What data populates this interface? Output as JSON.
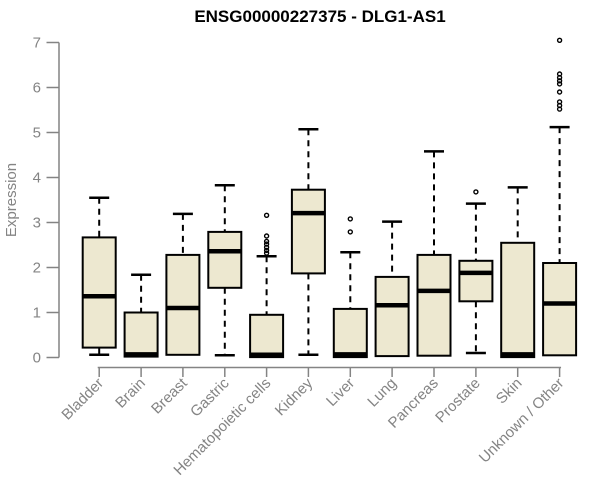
{
  "chart_data": {
    "type": "boxplot",
    "title": "ENSG00000227375 - DLG1-AS1",
    "ylabel": "Expression",
    "xlabel": "",
    "ylim": [
      0,
      7.2
    ],
    "yticks": [
      0,
      1,
      2,
      3,
      4,
      5,
      6,
      7
    ],
    "grid": false,
    "legend": "none",
    "categories": [
      "Bladder",
      "Brain",
      "Breast",
      "Gastric",
      "Hematopoietic cells",
      "Kidney",
      "Liver",
      "Lung",
      "Pancreas",
      "Prostate",
      "Skin",
      "Unknown / Other"
    ],
    "boxes": [
      {
        "category": "Bladder",
        "whisker_low": 0.06,
        "q1": 0.22,
        "median": 1.36,
        "q3": 2.67,
        "whisker_high": 3.55,
        "outliers": []
      },
      {
        "category": "Brain",
        "whisker_low": 0.02,
        "q1": 0.02,
        "median": 0.07,
        "q3": 1.0,
        "whisker_high": 1.84,
        "outliers": []
      },
      {
        "category": "Breast",
        "whisker_low": 0.06,
        "q1": 0.06,
        "median": 1.1,
        "q3": 2.28,
        "whisker_high": 3.19,
        "outliers": []
      },
      {
        "category": "Gastric",
        "whisker_low": 0.05,
        "q1": 1.55,
        "median": 2.36,
        "q3": 2.79,
        "whisker_high": 3.83,
        "outliers": []
      },
      {
        "category": "Hematopoietic cells",
        "whisker_low": 0.01,
        "q1": 0.01,
        "median": 0.06,
        "q3": 0.95,
        "whisker_high": 2.25,
        "outliers": [
          2.32,
          2.38,
          2.45,
          2.52,
          2.58,
          2.7,
          3.16
        ]
      },
      {
        "category": "Kidney",
        "whisker_low": 0.06,
        "q1": 1.87,
        "median": 3.21,
        "q3": 3.73,
        "whisker_high": 5.07,
        "outliers": []
      },
      {
        "category": "Liver",
        "whisker_low": 0.01,
        "q1": 0.01,
        "median": 0.07,
        "q3": 1.08,
        "whisker_high": 2.34,
        "outliers": [
          2.79,
          3.08
        ]
      },
      {
        "category": "Lung",
        "whisker_low": 0.03,
        "q1": 0.03,
        "median": 1.16,
        "q3": 1.79,
        "whisker_high": 3.02,
        "outliers": []
      },
      {
        "category": "Pancreas",
        "whisker_low": 0.04,
        "q1": 0.04,
        "median": 1.48,
        "q3": 2.28,
        "whisker_high": 4.58,
        "outliers": []
      },
      {
        "category": "Prostate",
        "whisker_low": 0.1,
        "q1": 1.25,
        "median": 1.88,
        "q3": 2.15,
        "whisker_high": 3.42,
        "outliers": [
          3.68
        ]
      },
      {
        "category": "Skin",
        "whisker_low": 0.01,
        "q1": 0.01,
        "median": 0.07,
        "q3": 2.55,
        "whisker_high": 3.78,
        "outliers": []
      },
      {
        "category": "Unknown / Other",
        "whisker_low": 0.05,
        "q1": 0.05,
        "median": 1.2,
        "q3": 2.1,
        "whisker_high": 5.12,
        "outliers": [
          5.52,
          5.6,
          5.68,
          5.9,
          6.08,
          6.15,
          6.22,
          6.3,
          7.05
        ]
      }
    ],
    "colors": {
      "box_fill": "#EDE8D0",
      "box_border": "#000000",
      "median": "#000000",
      "axis": "#848484",
      "title": "#000000",
      "background": "#FFFFFF"
    }
  }
}
